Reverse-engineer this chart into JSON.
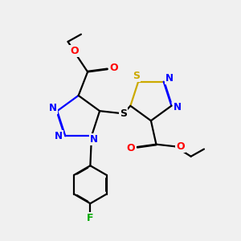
{
  "bg_color": "#f0f0f0",
  "colors": {
    "bond": "#000000",
    "N": "#0000ff",
    "O": "#ff0000",
    "S": "#ccaa00",
    "F": "#00aa00"
  },
  "lw": 1.6,
  "dbo": 0.018
}
